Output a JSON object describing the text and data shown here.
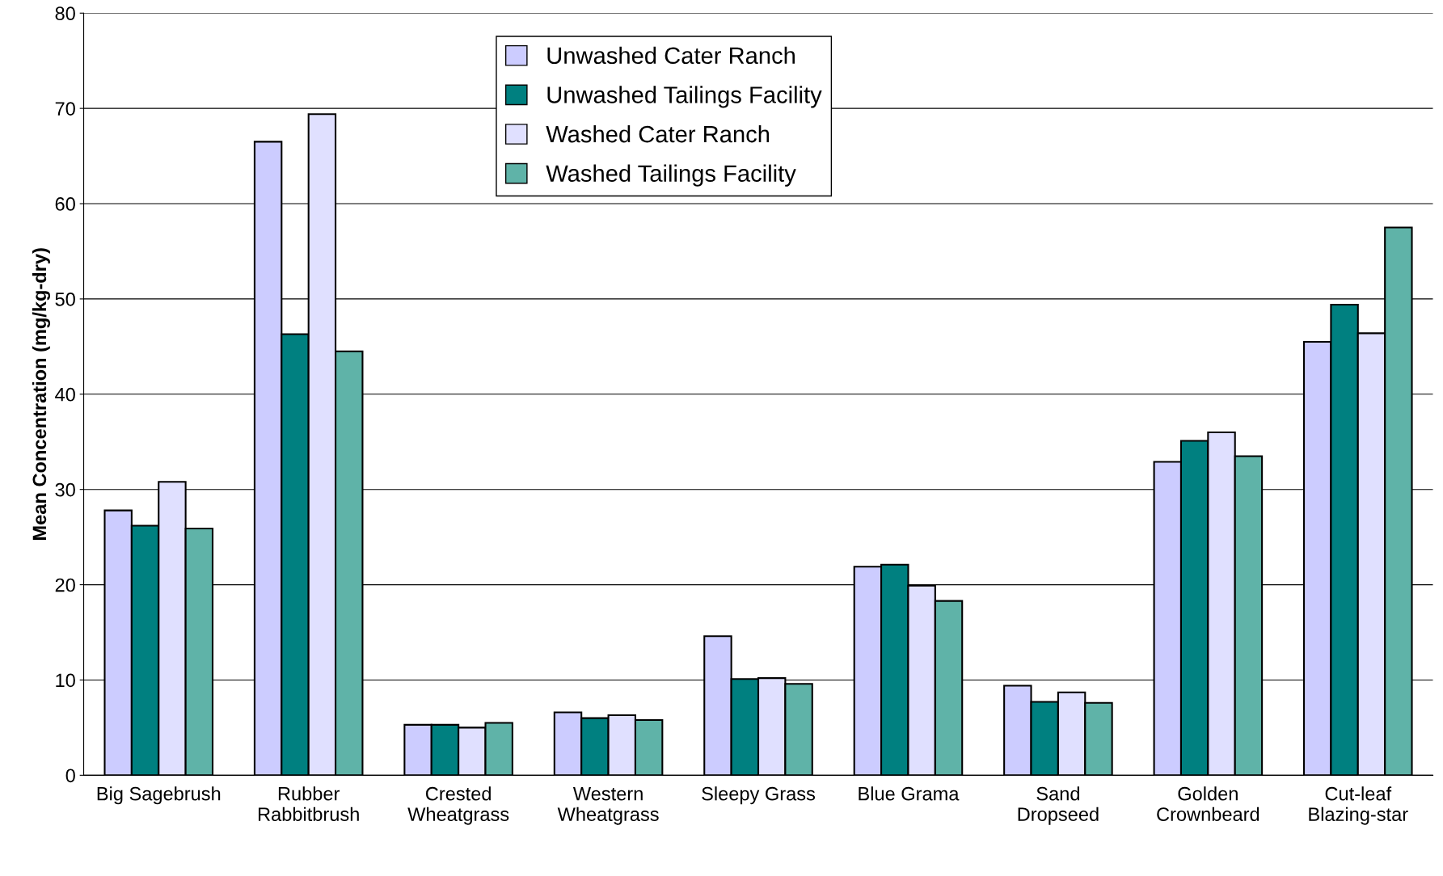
{
  "chart_data": {
    "type": "bar",
    "ylabel": "Mean Concentration (mg/kg-dry)",
    "categories": [
      "Big Sagebrush",
      "Rubber\nRabbitbrush",
      "Crested\nWheatgrass",
      "Western\nWheatgrass",
      "Sleepy Grass",
      "Blue Grama",
      "Sand\nDropseed",
      "Golden\nCrownbeard",
      "Cut-leaf\nBlazing-star"
    ],
    "series": [
      {
        "name": "Unwashed Cater Ranch",
        "color": "#ccccff",
        "values": [
          27.8,
          66.5,
          5.3,
          6.6,
          14.6,
          21.9,
          9.4,
          32.9,
          45.5
        ]
      },
      {
        "name": "Unwashed Tailings Facility",
        "color": "#008080",
        "values": [
          26.2,
          46.3,
          5.3,
          6.0,
          10.1,
          22.1,
          7.7,
          35.1,
          49.4
        ]
      },
      {
        "name": "Washed Cater Ranch",
        "color": "#e0e0ff",
        "values": [
          30.8,
          69.4,
          5.0,
          6.3,
          10.2,
          19.9,
          8.7,
          36.0,
          46.4
        ]
      },
      {
        "name": "Washed Tailings Facility",
        "color": "#5fb3a8",
        "values": [
          25.9,
          44.5,
          5.5,
          5.8,
          9.6,
          18.3,
          7.6,
          33.5,
          57.5
        ]
      }
    ],
    "ylim": [
      0,
      80
    ],
    "yticks": [
      0,
      10,
      20,
      30,
      40,
      50,
      60,
      70,
      80
    ],
    "grid": "y",
    "legend": "top"
  }
}
